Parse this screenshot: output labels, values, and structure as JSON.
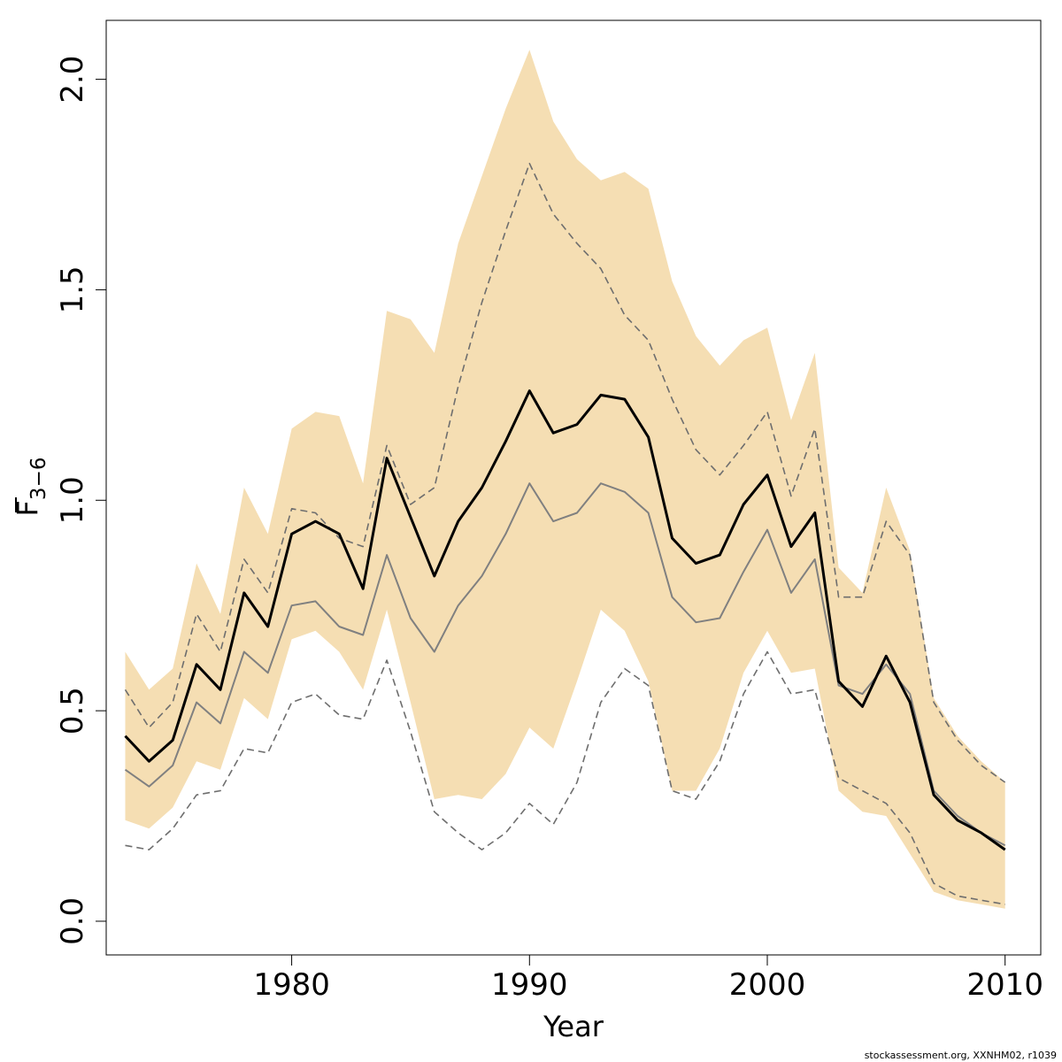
{
  "chart_data": {
    "type": "line",
    "xlabel": "Year",
    "ylabel": "F",
    "ylabel_subscript": "3−6",
    "xlim": [
      1972.2,
      2011.5
    ],
    "ylim": [
      -0.08,
      2.14
    ],
    "xticks": [
      1980,
      1990,
      2000,
      2010
    ],
    "yticks": [
      0.0,
      0.5,
      1.0,
      1.5,
      2.0
    ],
    "ytick_labels": [
      "0.0",
      "0.5",
      "1.0",
      "1.5",
      "2.0"
    ],
    "colors": {
      "band": "#f5deb3",
      "main": "#000000",
      "secondary": "#808080",
      "dashed": "#6e6e6e"
    },
    "x": [
      1973,
      1974,
      1975,
      1976,
      1977,
      1978,
      1979,
      1980,
      1981,
      1982,
      1983,
      1984,
      1985,
      1986,
      1987,
      1988,
      1989,
      1990,
      1991,
      1992,
      1993,
      1994,
      1995,
      1996,
      1997,
      1998,
      1999,
      2000,
      2001,
      2002,
      2003,
      2004,
      2005,
      2006,
      2007,
      2008,
      2009,
      2010
    ],
    "series": [
      {
        "role": "band_upper",
        "values": [
          0.64,
          0.55,
          0.6,
          0.85,
          0.73,
          1.03,
          0.92,
          1.17,
          1.21,
          1.2,
          1.04,
          1.45,
          1.43,
          1.35,
          1.61,
          1.77,
          1.93,
          2.07,
          1.9,
          1.81,
          1.76,
          1.78,
          1.74,
          1.52,
          1.39,
          1.32,
          1.38,
          1.41,
          1.19,
          1.35,
          0.84,
          0.78,
          1.03,
          0.88,
          0.53,
          0.44,
          0.38,
          0.33
        ]
      },
      {
        "role": "band_lower",
        "values": [
          0.24,
          0.22,
          0.27,
          0.38,
          0.36,
          0.53,
          0.48,
          0.67,
          0.69,
          0.64,
          0.55,
          0.74,
          0.52,
          0.29,
          0.3,
          0.29,
          0.35,
          0.46,
          0.41,
          0.57,
          0.74,
          0.69,
          0.57,
          0.31,
          0.31,
          0.41,
          0.59,
          0.69,
          0.59,
          0.6,
          0.31,
          0.26,
          0.25,
          0.16,
          0.07,
          0.05,
          0.04,
          0.03
        ]
      },
      {
        "role": "dashed_upper",
        "values": [
          0.55,
          0.46,
          0.52,
          0.73,
          0.64,
          0.86,
          0.78,
          0.98,
          0.97,
          0.91,
          0.89,
          1.13,
          0.99,
          1.03,
          1.27,
          1.47,
          1.64,
          1.8,
          1.68,
          1.61,
          1.55,
          1.44,
          1.38,
          1.24,
          1.12,
          1.06,
          1.13,
          1.21,
          1.01,
          1.17,
          0.77,
          0.77,
          0.95,
          0.87,
          0.52,
          0.43,
          0.37,
          0.33
        ]
      },
      {
        "role": "dashed_lower",
        "values": [
          0.18,
          0.17,
          0.22,
          0.3,
          0.31,
          0.41,
          0.4,
          0.52,
          0.54,
          0.49,
          0.48,
          0.62,
          0.45,
          0.26,
          0.21,
          0.17,
          0.21,
          0.28,
          0.23,
          0.33,
          0.52,
          0.6,
          0.56,
          0.31,
          0.29,
          0.38,
          0.54,
          0.64,
          0.54,
          0.55,
          0.34,
          0.31,
          0.28,
          0.21,
          0.09,
          0.06,
          0.05,
          0.04
        ]
      },
      {
        "role": "secondary",
        "values": [
          0.36,
          0.32,
          0.37,
          0.52,
          0.47,
          0.64,
          0.59,
          0.75,
          0.76,
          0.7,
          0.68,
          0.87,
          0.72,
          0.64,
          0.75,
          0.82,
          0.92,
          1.04,
          0.95,
          0.97,
          1.04,
          1.02,
          0.97,
          0.77,
          0.71,
          0.72,
          0.83,
          0.93,
          0.78,
          0.86,
          0.56,
          0.54,
          0.61,
          0.54,
          0.31,
          0.25,
          0.21,
          0.18
        ]
      },
      {
        "role": "main",
        "values": [
          0.44,
          0.38,
          0.43,
          0.61,
          0.55,
          0.78,
          0.7,
          0.92,
          0.95,
          0.92,
          0.79,
          1.1,
          0.96,
          0.82,
          0.95,
          1.03,
          1.14,
          1.26,
          1.16,
          1.18,
          1.25,
          1.24,
          1.15,
          0.91,
          0.85,
          0.87,
          0.99,
          1.06,
          0.89,
          0.97,
          0.57,
          0.51,
          0.63,
          0.52,
          0.3,
          0.24,
          0.21,
          0.17
        ]
      }
    ]
  },
  "credit": "stockassessment.org, XXNHM02, r1039"
}
